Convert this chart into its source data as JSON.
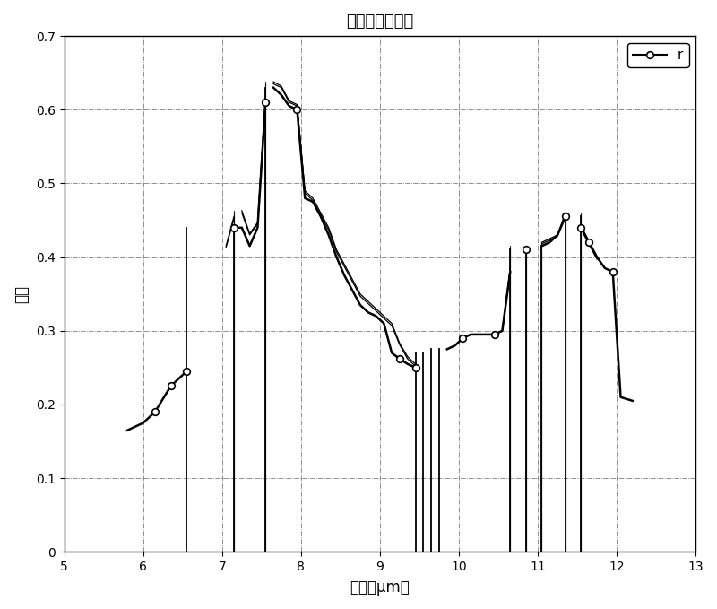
{
  "title": "原始光谱的校正",
  "xlabel": "波长［μm］",
  "ylabel": "计数",
  "xlim": [
    5,
    13
  ],
  "ylim": [
    0,
    0.7
  ],
  "xticks": [
    5,
    6,
    7,
    8,
    9,
    10,
    11,
    12,
    13
  ],
  "yticks": [
    0,
    0.1,
    0.2,
    0.3,
    0.4,
    0.5,
    0.6,
    0.7
  ],
  "legend_label": "r",
  "line_color": "#000000",
  "background_color": "#ffffff",
  "figsize": [
    8.0,
    6.79
  ],
  "dpi": 100,
  "main_curve_x": [
    5.8,
    6.0,
    6.15,
    6.35,
    6.55,
    6.551,
    7.15,
    7.151,
    7.25,
    7.35,
    7.45,
    7.55,
    7.551,
    7.65,
    7.75,
    7.85,
    7.95,
    8.05,
    8.15,
    8.25,
    8.35,
    8.45,
    8.55,
    8.65,
    8.75,
    8.85,
    8.95,
    9.05,
    9.15,
    9.25,
    9.35,
    9.45,
    9.451,
    9.55,
    9.65,
    9.651,
    9.75,
    9.85,
    9.95,
    10.05,
    10.15,
    10.25,
    10.35,
    10.45,
    10.55,
    10.65,
    10.651,
    10.85,
    10.851,
    11.05,
    11.051,
    11.15,
    11.25,
    11.35,
    11.351,
    11.55,
    11.551,
    11.65,
    11.75,
    11.85,
    11.95,
    12.05,
    12.2
  ],
  "main_curve_y": [
    0.165,
    0.175,
    0.19,
    0.225,
    0.245,
    0.0,
    0.0,
    0.44,
    0.44,
    0.415,
    0.44,
    0.61,
    0.0,
    0.63,
    0.62,
    0.605,
    0.6,
    0.48,
    0.475,
    0.455,
    0.43,
    0.4,
    0.375,
    0.355,
    0.335,
    0.325,
    0.32,
    0.31,
    0.27,
    0.262,
    0.255,
    0.25,
    0.0,
    0.0,
    0.27,
    0.0,
    0.0,
    0.275,
    0.28,
    0.29,
    0.295,
    0.295,
    0.295,
    0.295,
    0.3,
    0.38,
    0.0,
    0.0,
    0.41,
    0.0,
    0.415,
    0.42,
    0.43,
    0.455,
    0.0,
    0.0,
    0.44,
    0.42,
    0.4,
    0.385,
    0.38,
    0.21,
    0.205
  ],
  "extra_curves": [
    {
      "x": [
        7.05,
        7.15,
        7.151,
        7.25,
        7.35,
        7.45,
        7.55,
        7.551,
        7.65,
        7.75,
        7.85,
        7.95,
        8.05,
        8.15,
        8.25,
        8.35,
        8.45,
        8.55,
        8.65,
        8.75,
        8.85,
        8.95,
        9.05,
        9.15,
        9.25,
        9.35,
        9.45
      ],
      "y": [
        0.415,
        0.455,
        0.0,
        0.46,
        0.43,
        0.445,
        0.615,
        0.0,
        0.635,
        0.63,
        0.61,
        0.605,
        0.49,
        0.48,
        0.46,
        0.44,
        0.41,
        0.39,
        0.37,
        0.35,
        0.34,
        0.33,
        0.32,
        0.31,
        0.283,
        0.265,
        0.255
      ]
    },
    {
      "x": [
        7.05,
        7.15,
        7.151,
        7.25,
        7.35,
        7.45,
        7.55,
        7.551,
        7.65,
        7.75,
        7.85,
        7.95,
        8.05,
        8.15,
        8.25,
        8.35,
        8.45,
        8.55,
        8.65,
        8.75,
        8.85,
        8.95,
        9.05,
        9.15,
        9.25,
        9.35,
        9.45
      ],
      "y": [
        0.413,
        0.452,
        0.0,
        0.463,
        0.432,
        0.447,
        0.618,
        0.0,
        0.638,
        0.632,
        0.612,
        0.607,
        0.487,
        0.477,
        0.457,
        0.437,
        0.407,
        0.387,
        0.367,
        0.347,
        0.337,
        0.327,
        0.317,
        0.307,
        0.281,
        0.262,
        0.252
      ]
    },
    {
      "x": [
        10.45,
        10.55,
        10.65,
        10.651,
        10.85,
        10.851,
        11.05,
        11.051,
        11.15,
        11.25,
        11.35,
        11.351,
        11.55,
        11.551,
        11.65,
        11.75
      ],
      "y": [
        0.295,
        0.3,
        0.385,
        0.0,
        0.0,
        0.415,
        0.0,
        0.42,
        0.425,
        0.43,
        0.46,
        0.0,
        0.0,
        0.44,
        0.42,
        0.4
      ]
    },
    {
      "x": [
        10.45,
        10.55,
        10.65,
        10.651,
        10.85,
        10.851,
        11.05,
        11.051,
        11.15,
        11.25,
        11.35,
        11.351,
        11.55,
        11.551,
        11.65,
        11.75
      ],
      "y": [
        0.295,
        0.3,
        0.383,
        0.0,
        0.0,
        0.412,
        0.0,
        0.418,
        0.423,
        0.428,
        0.458,
        0.0,
        0.0,
        0.437,
        0.417,
        0.397
      ]
    }
  ],
  "circle_points": [
    [
      6.15,
      0.19
    ],
    [
      6.35,
      0.225
    ],
    [
      6.55,
      0.245
    ],
    [
      7.15,
      0.44
    ],
    [
      7.55,
      0.61
    ],
    [
      7.95,
      0.6
    ],
    [
      9.25,
      0.262
    ],
    [
      9.45,
      0.25
    ],
    [
      10.05,
      0.29
    ],
    [
      10.45,
      0.295
    ],
    [
      10.85,
      0.41
    ],
    [
      11.35,
      0.455
    ],
    [
      11.55,
      0.44
    ],
    [
      11.65,
      0.42
    ],
    [
      11.95,
      0.38
    ]
  ]
}
